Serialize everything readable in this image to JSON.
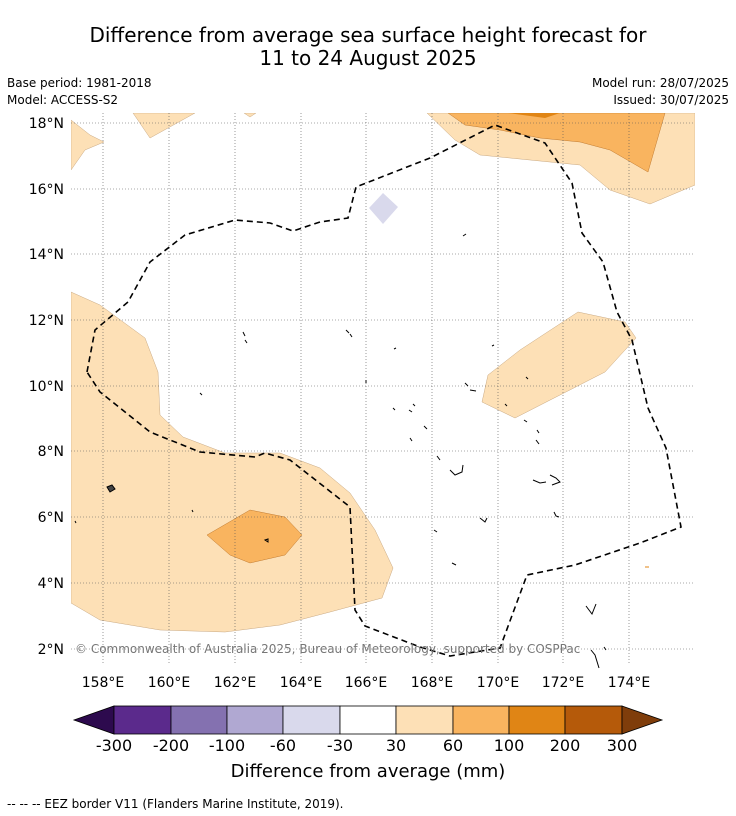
{
  "title_line1": "Difference from average sea surface height forecast for",
  "title_line2": "11 to 24 August 2025",
  "meta": {
    "base_period": "Base period: 1981-2018",
    "model": "Model: ACCESS-S2",
    "model_run": "Model run: 28/07/2025",
    "issued": "Issued: 30/07/2025"
  },
  "map": {
    "lat_labels": [
      "18°N",
      "16°N",
      "14°N",
      "12°N",
      "10°N",
      "8°N",
      "6°N",
      "4°N",
      "2°N"
    ],
    "lon_labels": [
      "158°E",
      "160°E",
      "162°E",
      "164°E",
      "166°E",
      "168°E",
      "170°E",
      "172°E",
      "174°E"
    ],
    "copyright": "© Commonwealth of Australia 2025, Bureau of Meteorology, supported by COSPPac"
  },
  "colorbar": {
    "ticks": [
      "-300",
      "-200",
      "-100",
      "-60",
      "-30",
      "30",
      "60",
      "100",
      "200",
      "300"
    ],
    "colors": [
      "#2d0a4e",
      "#5b2a8c",
      "#8471b0",
      "#b0a8d2",
      "#d9d9ec",
      "#ffffff",
      "#fde0b6",
      "#f9b45f",
      "#e08515",
      "#b55a0a",
      "#7f3d0b"
    ],
    "title": "Difference from average (mm)"
  },
  "footnote": "--  --  -- EEZ border V11 (Flanders Marine Institute, 2019)."
}
